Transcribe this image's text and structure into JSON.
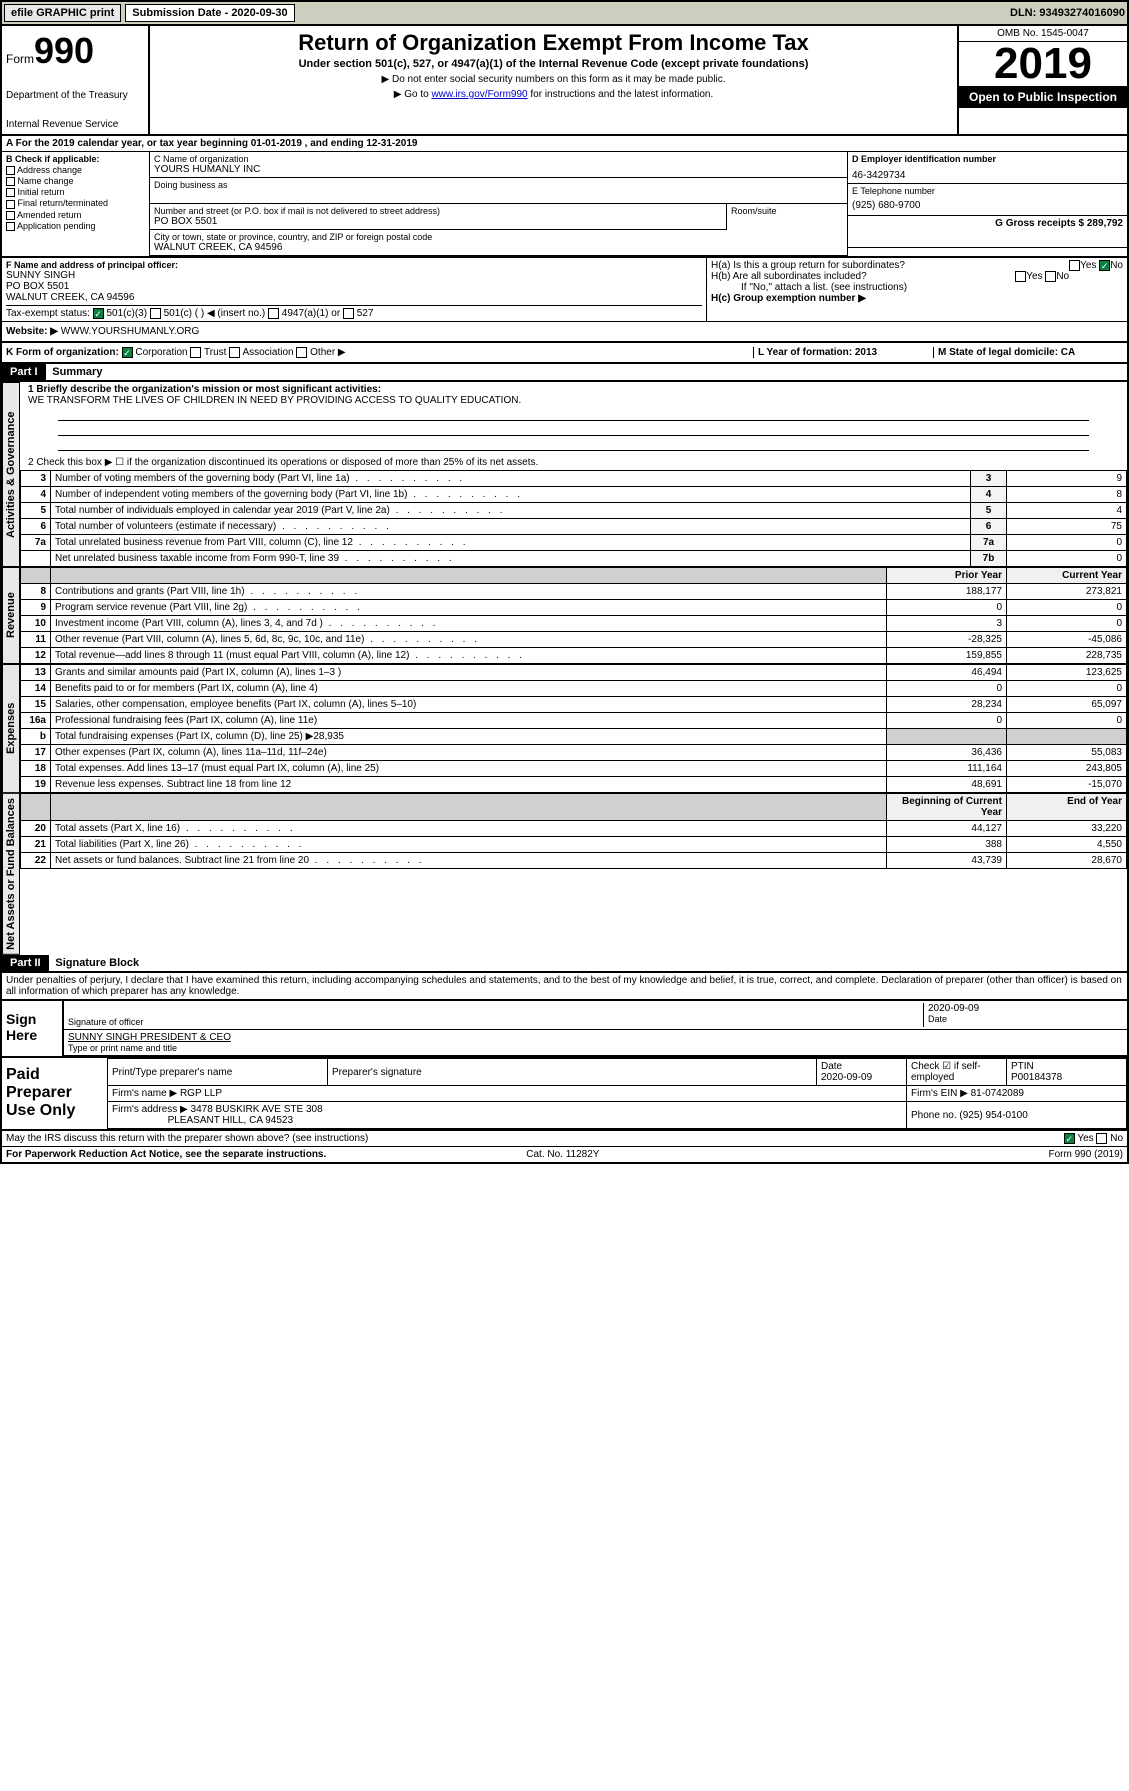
{
  "topbar": {
    "efile": "efile GRAPHIC print",
    "submission_label": "Submission Date - 2020-09-30",
    "dln": "DLN: 93493274016090"
  },
  "header": {
    "form_prefix": "Form",
    "form_num": "990",
    "dept1": "Department of the Treasury",
    "dept2": "Internal Revenue Service",
    "title": "Return of Organization Exempt From Income Tax",
    "subtitle": "Under section 501(c), 527, or 4947(a)(1) of the Internal Revenue Code (except private foundations)",
    "note1": "▶ Do not enter social security numbers on this form as it may be made public.",
    "note2_pre": "▶ Go to ",
    "note2_link": "www.irs.gov/Form990",
    "note2_post": " for instructions and the latest information.",
    "omb": "OMB No. 1545-0047",
    "year": "2019",
    "open_public": "Open to Public Inspection"
  },
  "period": {
    "text": "For the 2019 calendar year, or tax year beginning 01-01-2019   , and ending 12-31-2019"
  },
  "box_b": {
    "label": "B Check if applicable:",
    "items": [
      "Address change",
      "Name change",
      "Initial return",
      "Final return/terminated",
      "Amended return",
      "Application pending"
    ]
  },
  "box_c": {
    "name_lbl": "C Name of organization",
    "name": "YOURS HUMANLY INC",
    "dba_lbl": "Doing business as",
    "addr_lbl": "Number and street (or P.O. box if mail is not delivered to street address)",
    "addr": "PO BOX 5501",
    "suite_lbl": "Room/suite",
    "city_lbl": "City or town, state or province, country, and ZIP or foreign postal code",
    "city": "WALNUT CREEK, CA  94596"
  },
  "box_d": {
    "lbl": "D Employer identification number",
    "val": "46-3429734"
  },
  "box_e": {
    "lbl": "E Telephone number",
    "val": "(925) 680-9700"
  },
  "box_g": {
    "lbl": "G Gross receipts $ 289,792"
  },
  "box_f": {
    "lbl": "F Name and address of principal officer:",
    "name": "SUNNY SINGH",
    "addr1": "PO BOX 5501",
    "addr2": "WALNUT CREEK, CA  94596"
  },
  "box_h": {
    "ha": "H(a)  Is this a group return for subordinates?",
    "hb": "H(b)  Are all subordinates included?",
    "hb_note": "If \"No,\" attach a list. (see instructions)",
    "hc": "H(c)  Group exemption number ▶"
  },
  "tax_status": {
    "lbl": "Tax-exempt status:",
    "opts": [
      "501(c)(3)",
      "501(c) (  ) ◀ (insert no.)",
      "4947(a)(1) or",
      "527"
    ]
  },
  "website": {
    "lbl": "Website: ▶",
    "val": "WWW.YOURSHUMANLY.ORG"
  },
  "box_k": {
    "lbl": "K Form of organization:",
    "opts": [
      "Corporation",
      "Trust",
      "Association",
      "Other ▶"
    ]
  },
  "box_l": {
    "lbl": "L Year of formation: 2013"
  },
  "box_m": {
    "lbl": "M State of legal domicile: CA"
  },
  "part1": {
    "hdr": "Part I",
    "title": "Summary",
    "q1_lbl": "1  Briefly describe the organization's mission or most significant activities:",
    "q1_val": "WE TRANSFORM THE LIVES OF CHILDREN IN NEED BY PROVIDING ACCESS TO QUALITY EDUCATION.",
    "q2": "2   Check this box ▶ ☐  if the organization discontinued its operations or disposed of more than 25% of its net assets.",
    "sides": {
      "gov": "Activities & Governance",
      "rev": "Revenue",
      "exp": "Expenses",
      "net": "Net Assets or Fund Balances"
    },
    "gov_rows": [
      {
        "n": "3",
        "t": "Number of voting members of the governing body (Part VI, line 1a)",
        "b": "3",
        "v": "9"
      },
      {
        "n": "4",
        "t": "Number of independent voting members of the governing body (Part VI, line 1b)",
        "b": "4",
        "v": "8"
      },
      {
        "n": "5",
        "t": "Total number of individuals employed in calendar year 2019 (Part V, line 2a)",
        "b": "5",
        "v": "4"
      },
      {
        "n": "6",
        "t": "Total number of volunteers (estimate if necessary)",
        "b": "6",
        "v": "75"
      },
      {
        "n": "7a",
        "t": "Total unrelated business revenue from Part VIII, column (C), line 12",
        "b": "7a",
        "v": "0"
      },
      {
        "n": "",
        "t": "Net unrelated business taxable income from Form 990-T, line 39",
        "b": "7b",
        "v": "0"
      }
    ],
    "col_hdrs": {
      "prior": "Prior Year",
      "current": "Current Year",
      "begin": "Beginning of Current Year",
      "end": "End of Year"
    },
    "rev_rows": [
      {
        "n": "8",
        "t": "Contributions and grants (Part VIII, line 1h)",
        "p": "188,177",
        "c": "273,821"
      },
      {
        "n": "9",
        "t": "Program service revenue (Part VIII, line 2g)",
        "p": "0",
        "c": "0"
      },
      {
        "n": "10",
        "t": "Investment income (Part VIII, column (A), lines 3, 4, and 7d )",
        "p": "3",
        "c": "0"
      },
      {
        "n": "11",
        "t": "Other revenue (Part VIII, column (A), lines 5, 6d, 8c, 9c, 10c, and 11e)",
        "p": "-28,325",
        "c": "-45,086"
      },
      {
        "n": "12",
        "t": "Total revenue—add lines 8 through 11 (must equal Part VIII, column (A), line 12)",
        "p": "159,855",
        "c": "228,735"
      }
    ],
    "exp_rows": [
      {
        "n": "13",
        "t": "Grants and similar amounts paid (Part IX, column (A), lines 1–3 )",
        "p": "46,494",
        "c": "123,625"
      },
      {
        "n": "14",
        "t": "Benefits paid to or for members (Part IX, column (A), line 4)",
        "p": "0",
        "c": "0"
      },
      {
        "n": "15",
        "t": "Salaries, other compensation, employee benefits (Part IX, column (A), lines 5–10)",
        "p": "28,234",
        "c": "65,097"
      },
      {
        "n": "16a",
        "t": "Professional fundraising fees (Part IX, column (A), line 11e)",
        "p": "0",
        "c": "0"
      },
      {
        "n": "b",
        "t": "Total fundraising expenses (Part IX, column (D), line 25) ▶28,935",
        "p": "",
        "c": "",
        "shade": true
      },
      {
        "n": "17",
        "t": "Other expenses (Part IX, column (A), lines 11a–11d, 11f–24e)",
        "p": "36,436",
        "c": "55,083"
      },
      {
        "n": "18",
        "t": "Total expenses. Add lines 13–17 (must equal Part IX, column (A), line 25)",
        "p": "111,164",
        "c": "243,805"
      },
      {
        "n": "19",
        "t": "Revenue less expenses. Subtract line 18 from line 12",
        "p": "48,691",
        "c": "-15,070"
      }
    ],
    "net_rows": [
      {
        "n": "20",
        "t": "Total assets (Part X, line 16)",
        "p": "44,127",
        "c": "33,220"
      },
      {
        "n": "21",
        "t": "Total liabilities (Part X, line 26)",
        "p": "388",
        "c": "4,550"
      },
      {
        "n": "22",
        "t": "Net assets or fund balances. Subtract line 21 from line 20",
        "p": "43,739",
        "c": "28,670"
      }
    ]
  },
  "part2": {
    "hdr": "Part II",
    "title": "Signature Block",
    "declaration": "Under penalties of perjury, I declare that I have examined this return, including accompanying schedules and statements, and to the best of my knowledge and belief, it is true, correct, and complete. Declaration of preparer (other than officer) is based on all information of which preparer has any knowledge."
  },
  "sign": {
    "lbl": "Sign Here",
    "sig_lbl": "Signature of officer",
    "date": "2020-09-09",
    "date_lbl": "Date",
    "name": "SUNNY SINGH  PRESIDENT & CEO",
    "name_lbl": "Type or print name and title"
  },
  "paid": {
    "lbl": "Paid Preparer Use Only",
    "h1": "Print/Type preparer's name",
    "h2": "Preparer's signature",
    "h3": "Date",
    "h3v": "2020-09-09",
    "h4": "Check ☑ if self-employed",
    "h5": "PTIN",
    "h5v": "P00184378",
    "firm_lbl": "Firm's name    ▶",
    "firm": "RGP LLP",
    "ein_lbl": "Firm's EIN ▶",
    "ein": "81-0742089",
    "addr_lbl": "Firm's address ▶",
    "addr1": "3478 BUSKIRK AVE STE 308",
    "addr2": "PLEASANT HILL, CA  94523",
    "phone_lbl": "Phone no.",
    "phone": "(925) 954-0100"
  },
  "footer": {
    "discuss": "May the IRS discuss this return with the preparer shown above? (see instructions)",
    "paperwork": "For Paperwork Reduction Act Notice, see the separate instructions.",
    "cat": "Cat. No. 11282Y",
    "form": "Form 990 (2019)"
  }
}
